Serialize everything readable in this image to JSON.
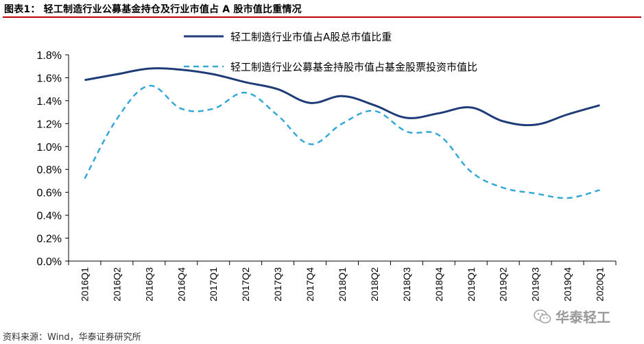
{
  "figure_title": "图表1： 轻工制造行业公募基金持仓及行业市值占 A 股市值比重情况",
  "source_text": "资料来源：Wind，华泰证券研究所",
  "watermark_text": "华泰轻工",
  "colors": {
    "title_rule": "#c00000",
    "series_solid": "#1f3c78",
    "series_dashed": "#33a7d8",
    "axis": "#000000"
  },
  "chart_data": {
    "type": "line",
    "categories": [
      "2016Q1",
      "2016Q2",
      "2016Q3",
      "2016Q4",
      "2017Q1",
      "2017Q2",
      "2017Q3",
      "2017Q4",
      "2018Q1",
      "2018Q2",
      "2018Q3",
      "2018Q4",
      "2019Q1",
      "2019Q2",
      "2019Q3",
      "2019Q4",
      "2020Q1"
    ],
    "y_tick_labels": [
      "0.0%",
      "0.2%",
      "0.4%",
      "0.6%",
      "0.8%",
      "1.0%",
      "1.2%",
      "1.4%",
      "1.6%",
      "1.8%"
    ],
    "ylim": [
      0,
      1.8
    ],
    "y_unit": "%",
    "grid": false,
    "legend_position": "top",
    "series": [
      {
        "name": "轻工制造行业市值占A股总市值比重",
        "style": "solid",
        "color": "#1f3c78",
        "values": [
          1.58,
          1.63,
          1.68,
          1.67,
          1.63,
          1.56,
          1.5,
          1.38,
          1.44,
          1.36,
          1.25,
          1.29,
          1.34,
          1.22,
          1.19,
          1.28,
          1.36
        ]
      },
      {
        "name": "轻工制造行业公募基金持股市值占基金股票投资市值比",
        "style": "dashed",
        "color": "#33a7d8",
        "values": [
          0.72,
          1.24,
          1.53,
          1.33,
          1.33,
          1.47,
          1.27,
          1.02,
          1.2,
          1.31,
          1.13,
          1.1,
          0.78,
          0.64,
          0.59,
          0.55,
          0.62
        ]
      }
    ]
  }
}
